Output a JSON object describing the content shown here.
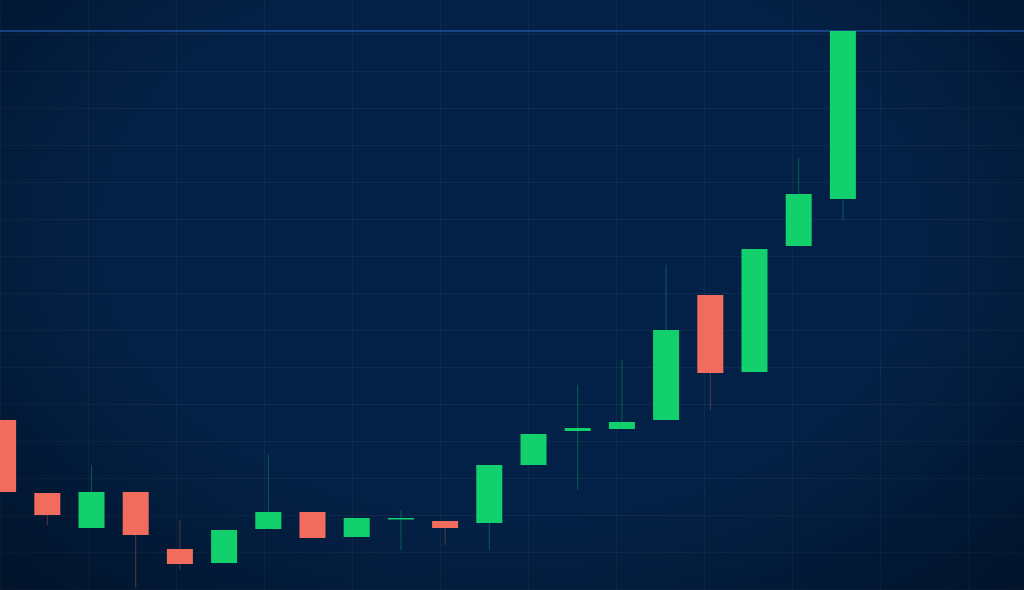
{
  "chart_data": {
    "type": "candlestick",
    "open": [
      170,
      97,
      62,
      98,
      41,
      27,
      61,
      78,
      53,
      72,
      69,
      67,
      125,
      159,
      161,
      170,
      295,
      218,
      344,
      391
    ],
    "high": [
      170,
      97,
      125,
      98,
      70,
      60,
      135,
      78,
      72,
      80,
      69,
      125,
      156,
      205,
      230,
      325,
      295,
      341,
      432,
      559
    ],
    "low": [
      98,
      65,
      62,
      2,
      20,
      27,
      61,
      52,
      53,
      40,
      45,
      40,
      125,
      100,
      161,
      170,
      180,
      218,
      344,
      370
    ],
    "close": [
      98,
      75,
      98,
      55,
      26,
      60,
      78,
      52,
      72,
      72,
      62,
      125,
      156,
      162,
      168,
      260,
      217,
      341,
      396,
      559
    ],
    "up_color": "#12d06c",
    "down_color": "#f26c5e",
    "ylim": [
      0,
      590
    ]
  }
}
